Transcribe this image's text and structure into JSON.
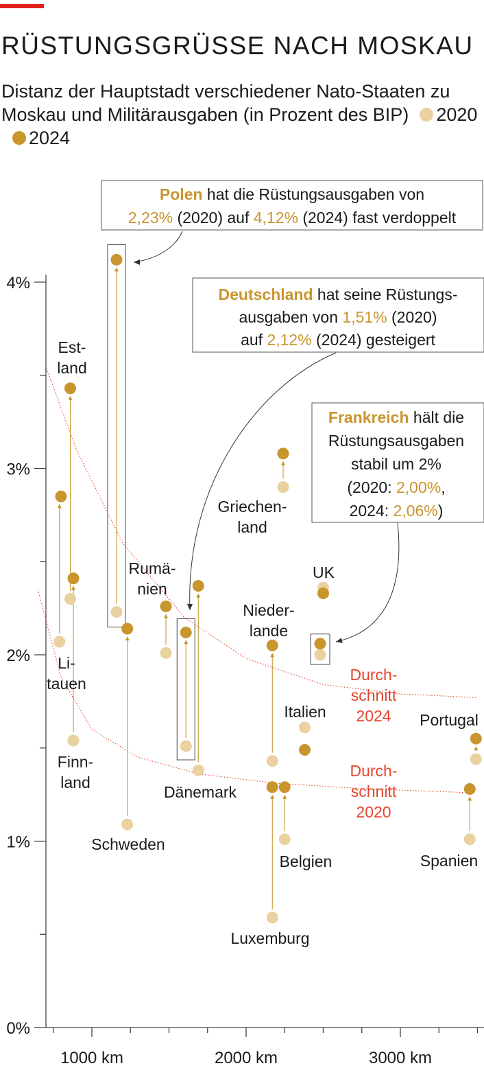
{
  "title": "RÜSTUNGSGRÜSSE NACH MOSKAU",
  "subtitle": "Distanz der Hauptstadt verschiedener Nato-Staaten zu Moskau und Militärausgaben (in Prozent des BIP)",
  "colors": {
    "accent": "#e3201b",
    "c2020": "#ead1a0",
    "c2024": "#c9952d",
    "average": "#e3452c"
  },
  "chart_data": {
    "type": "scatter",
    "title": "RÜSTUNGSGRÜSSE NACH MOSKAU",
    "x_unit": "km",
    "y_unit": "% des BIP",
    "xlim": [
      650,
      3650
    ],
    "ylim": [
      0,
      4.15
    ],
    "x_ticks": [
      1000,
      2000,
      3000
    ],
    "x_tick_labels": [
      "1000 km",
      "2000 km",
      "3000 km"
    ],
    "y_ticks": [
      0,
      1,
      2,
      3,
      4
    ],
    "y_tick_labels": [
      "0%",
      "1%",
      "2%",
      "3%",
      "4%"
    ],
    "y_minor_ticks": [
      0.5,
      1.5,
      2.5,
      3.5
    ],
    "legend": {
      "items": [
        {
          "key": "2020",
          "label": "2020"
        },
        {
          "key": "2024",
          "label": "2024"
        }
      ]
    },
    "series": [
      {
        "name": "2020",
        "points": [
          {
            "country": "Litauen",
            "x": 790,
            "y": 2.07
          },
          {
            "country": "Estland",
            "x": 860,
            "y": 2.3
          },
          {
            "country": "Finnland",
            "x": 880,
            "y": 1.54
          },
          {
            "country": "Polen",
            "x": 1160,
            "y": 2.23
          },
          {
            "country": "Schweden",
            "x": 1230,
            "y": 1.09
          },
          {
            "country": "Rumänien",
            "x": 1480,
            "y": 2.01
          },
          {
            "country": "Deutschland",
            "x": 1610,
            "y": 1.51
          },
          {
            "country": "Dänemark",
            "x": 1690,
            "y": 1.38
          },
          {
            "country": "Luxemburg",
            "x": 2170,
            "y": 0.59
          },
          {
            "country": "Niederlande",
            "x": 2170,
            "y": 1.43
          },
          {
            "country": "Belgien",
            "x": 2250,
            "y": 1.01
          },
          {
            "country": "Griechenland",
            "x": 2240,
            "y": 2.9
          },
          {
            "country": "Italien",
            "x": 2380,
            "y": 1.61
          },
          {
            "country": "Frankreich",
            "x": 2480,
            "y": 2.0
          },
          {
            "country": "UK",
            "x": 2500,
            "y": 2.36
          },
          {
            "country": "Spanien",
            "x": 3450,
            "y": 1.01
          },
          {
            "country": "Portugal",
            "x": 3490,
            "y": 1.44
          }
        ]
      },
      {
        "name": "2024",
        "points": [
          {
            "country": "Litauen",
            "x": 800,
            "y": 2.85
          },
          {
            "country": "Estland",
            "x": 860,
            "y": 3.43
          },
          {
            "country": "Finnland",
            "x": 880,
            "y": 2.41
          },
          {
            "country": "Polen",
            "x": 1160,
            "y": 4.12
          },
          {
            "country": "Schweden",
            "x": 1230,
            "y": 2.14
          },
          {
            "country": "Rumänien",
            "x": 1480,
            "y": 2.26
          },
          {
            "country": "Deutschland",
            "x": 1610,
            "y": 2.12
          },
          {
            "country": "Dänemark",
            "x": 1690,
            "y": 2.37
          },
          {
            "country": "Luxemburg",
            "x": 2170,
            "y": 1.29
          },
          {
            "country": "Niederlande",
            "x": 2170,
            "y": 2.05
          },
          {
            "country": "Belgien",
            "x": 2250,
            "y": 1.29
          },
          {
            "country": "Griechenland",
            "x": 2240,
            "y": 3.08
          },
          {
            "country": "Italien",
            "x": 2380,
            "y": 1.49
          },
          {
            "country": "Frankreich",
            "x": 2480,
            "y": 2.06
          },
          {
            "country": "UK",
            "x": 2500,
            "y": 2.33
          },
          {
            "country": "Spanien",
            "x": 3450,
            "y": 1.28
          },
          {
            "country": "Portugal",
            "x": 3490,
            "y": 1.55
          }
        ]
      }
    ],
    "labels": [
      {
        "text": "Est-\nland",
        "anchor": "Estland"
      },
      {
        "text": "Li-\ntauen",
        "anchor": "Litauen"
      },
      {
        "text": "Finn-\nland",
        "anchor": "Finnland"
      },
      {
        "text": "Schweden",
        "anchor": "Schweden"
      },
      {
        "text": "Rumä-\nnien",
        "anchor": "Rumänien"
      },
      {
        "text": "Dänemark",
        "anchor": "Dänemark"
      },
      {
        "text": "Griechen-\nland",
        "anchor": "Griechenland"
      },
      {
        "text": "UK",
        "anchor": "UK"
      },
      {
        "text": "Nieder-\nlande",
        "anchor": "Niederlande"
      },
      {
        "text": "Italien",
        "anchor": "Italien"
      },
      {
        "text": "Belgien",
        "anchor": "Belgien"
      },
      {
        "text": "Luxemburg",
        "anchor": "Luxemburg"
      },
      {
        "text": "Portugal",
        "anchor": "Portugal"
      },
      {
        "text": "Spanien",
        "anchor": "Spanien"
      }
    ],
    "averages": [
      {
        "name": "Durchschnitt 2024",
        "label": "Durch-\nschnitt\n2024",
        "curve": [
          [
            700,
            3.55
          ],
          [
            900,
            3.1
          ],
          [
            1200,
            2.6
          ],
          [
            1600,
            2.2
          ],
          [
            2000,
            1.98
          ],
          [
            2500,
            1.84
          ],
          [
            3000,
            1.79
          ],
          [
            3500,
            1.77
          ]
        ]
      },
      {
        "name": "Durchschnitt 2020",
        "label": "Durch-\nschnitt\n2020",
        "curve": [
          [
            650,
            2.35
          ],
          [
            800,
            1.88
          ],
          [
            1000,
            1.6
          ],
          [
            1300,
            1.45
          ],
          [
            1700,
            1.36
          ],
          [
            2200,
            1.31
          ],
          [
            2800,
            1.28
          ],
          [
            3450,
            1.26
          ]
        ]
      }
    ],
    "annotations": [
      {
        "country": "Polen",
        "parts": [
          [
            "Polen",
            "b"
          ],
          [
            " hat die Rüstungsausgaben von",
            "n"
          ],
          [
            "\n",
            "n"
          ],
          [
            "2,23%",
            "h"
          ],
          [
            " (2020) auf ",
            "n"
          ],
          [
            "4,12%",
            "h"
          ],
          [
            " (2024) fast verdoppelt",
            "n"
          ]
        ]
      },
      {
        "country": "Deutschland",
        "parts": [
          [
            "Deutschland",
            "b"
          ],
          [
            " hat seine Rüstungs-",
            "n"
          ],
          [
            "\n",
            "n"
          ],
          [
            "ausgaben von ",
            "n"
          ],
          [
            "1,51%",
            "h"
          ],
          [
            " (2020)",
            "n"
          ],
          [
            "\n",
            "n"
          ],
          [
            "auf ",
            "n"
          ],
          [
            "2,12%",
            "h"
          ],
          [
            " (2024) gesteigert",
            "n"
          ]
        ]
      },
      {
        "country": "Frankreich",
        "parts": [
          [
            "Frankreich",
            "b"
          ],
          [
            " hält die",
            "n"
          ],
          [
            "\n",
            "n"
          ],
          [
            "Rüstungsausgaben",
            "n"
          ],
          [
            "\n",
            "n"
          ],
          [
            "stabil um 2%",
            "n"
          ],
          [
            "\n",
            "n"
          ],
          [
            "(2020: ",
            "n"
          ],
          [
            "2,00%",
            "h"
          ],
          [
            ",",
            "n"
          ],
          [
            "\n",
            "n"
          ],
          [
            "2024: ",
            "n"
          ],
          [
            "2,06%",
            "h"
          ],
          [
            ")",
            "n"
          ]
        ]
      }
    ]
  }
}
